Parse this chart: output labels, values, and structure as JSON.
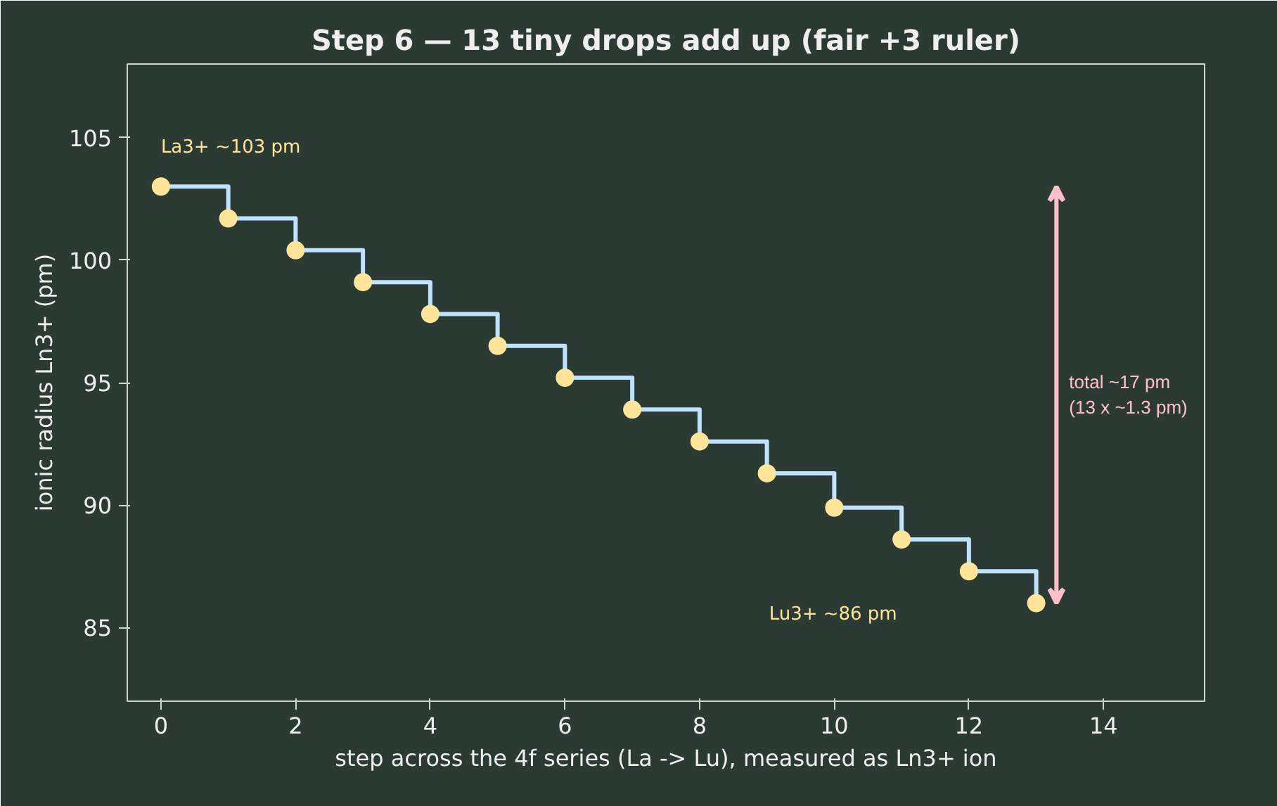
{
  "chart_data": {
    "type": "step",
    "title": "Step 6 — 13 tiny drops add up (fair +3 ruler)",
    "xlabel": "step across the 4f series (La -> Lu), measured as Ln3+ ion",
    "ylabel": "ionic radius Ln3+ (pm)",
    "x": [
      0,
      1,
      2,
      3,
      4,
      5,
      6,
      7,
      8,
      9,
      10,
      11,
      12,
      13
    ],
    "series": [
      {
        "color": "#bfe3ff",
        "values": [
          103.0,
          101.7,
          100.4,
          99.1,
          97.8,
          96.5,
          95.2,
          93.9,
          92.6,
          91.3,
          89.9,
          88.6,
          87.3,
          86.0
        ]
      }
    ],
    "marker": "circle",
    "xlim": [
      -0.5,
      15.5
    ],
    "ylim": [
      82,
      108
    ],
    "xticks": [
      0,
      2,
      4,
      6,
      8,
      10,
      12,
      14
    ],
    "yticks": [
      85,
      90,
      95,
      100,
      105
    ],
    "grid": false,
    "annotations": [
      "La3+ ~103 pm",
      "Lu3+ ~86 pm",
      "total ~17 pm\n(13 x ~1.3 pm)"
    ]
  }
}
